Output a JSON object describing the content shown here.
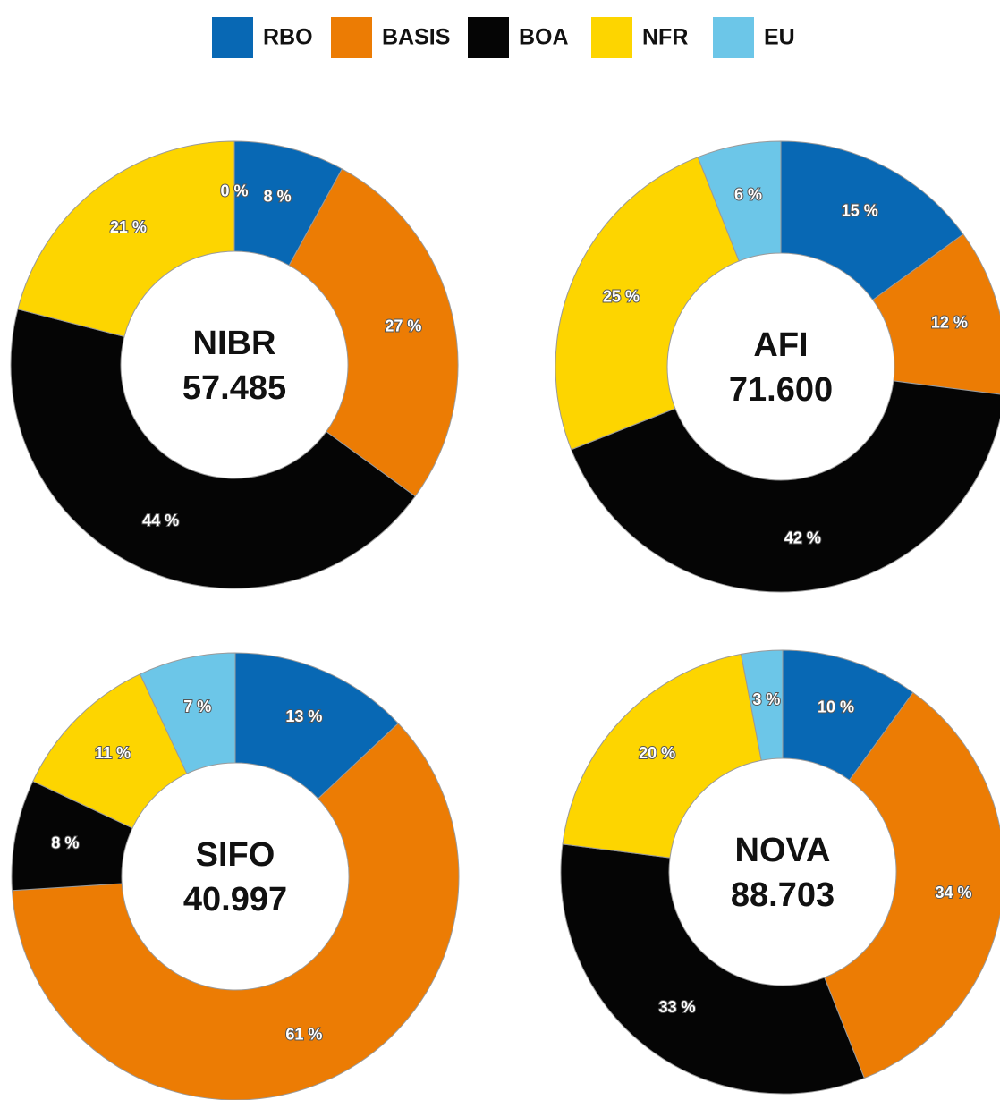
{
  "legend": {
    "categories": [
      "RBO",
      "BASIS",
      "BOA",
      "NFR",
      "EU"
    ],
    "colors": [
      "#0868b4",
      "#ec7c04",
      "#050505",
      "#fdd500",
      "#6cc6e8"
    ]
  },
  "chart_data": [
    {
      "type": "pie",
      "title": "NIBR",
      "subtitle": "57.485",
      "values": [
        8,
        27,
        44,
        21,
        0
      ],
      "value_labels": [
        "8 %",
        "27 %",
        "44 %",
        "21 %",
        "0 %"
      ]
    },
    {
      "type": "pie",
      "title": "AFI",
      "subtitle": "71.600",
      "values": [
        15,
        12,
        42,
        25,
        6
      ],
      "value_labels": [
        "15 %",
        "12 %",
        "42 %",
        "25 %",
        "6 %"
      ]
    },
    {
      "type": "pie",
      "title": "SIFO",
      "subtitle": "40.997",
      "values": [
        13,
        61,
        8,
        11,
        7
      ],
      "value_labels": [
        "13 %",
        "61 %",
        "8 %",
        "11 %",
        "7 %"
      ]
    },
    {
      "type": "pie",
      "title": "NOVA",
      "subtitle": "88.703",
      "values": [
        10,
        34,
        33,
        20,
        3
      ],
      "value_labels": [
        "10 %",
        "34 %",
        "33 %",
        "20 %",
        "3 %"
      ]
    }
  ]
}
